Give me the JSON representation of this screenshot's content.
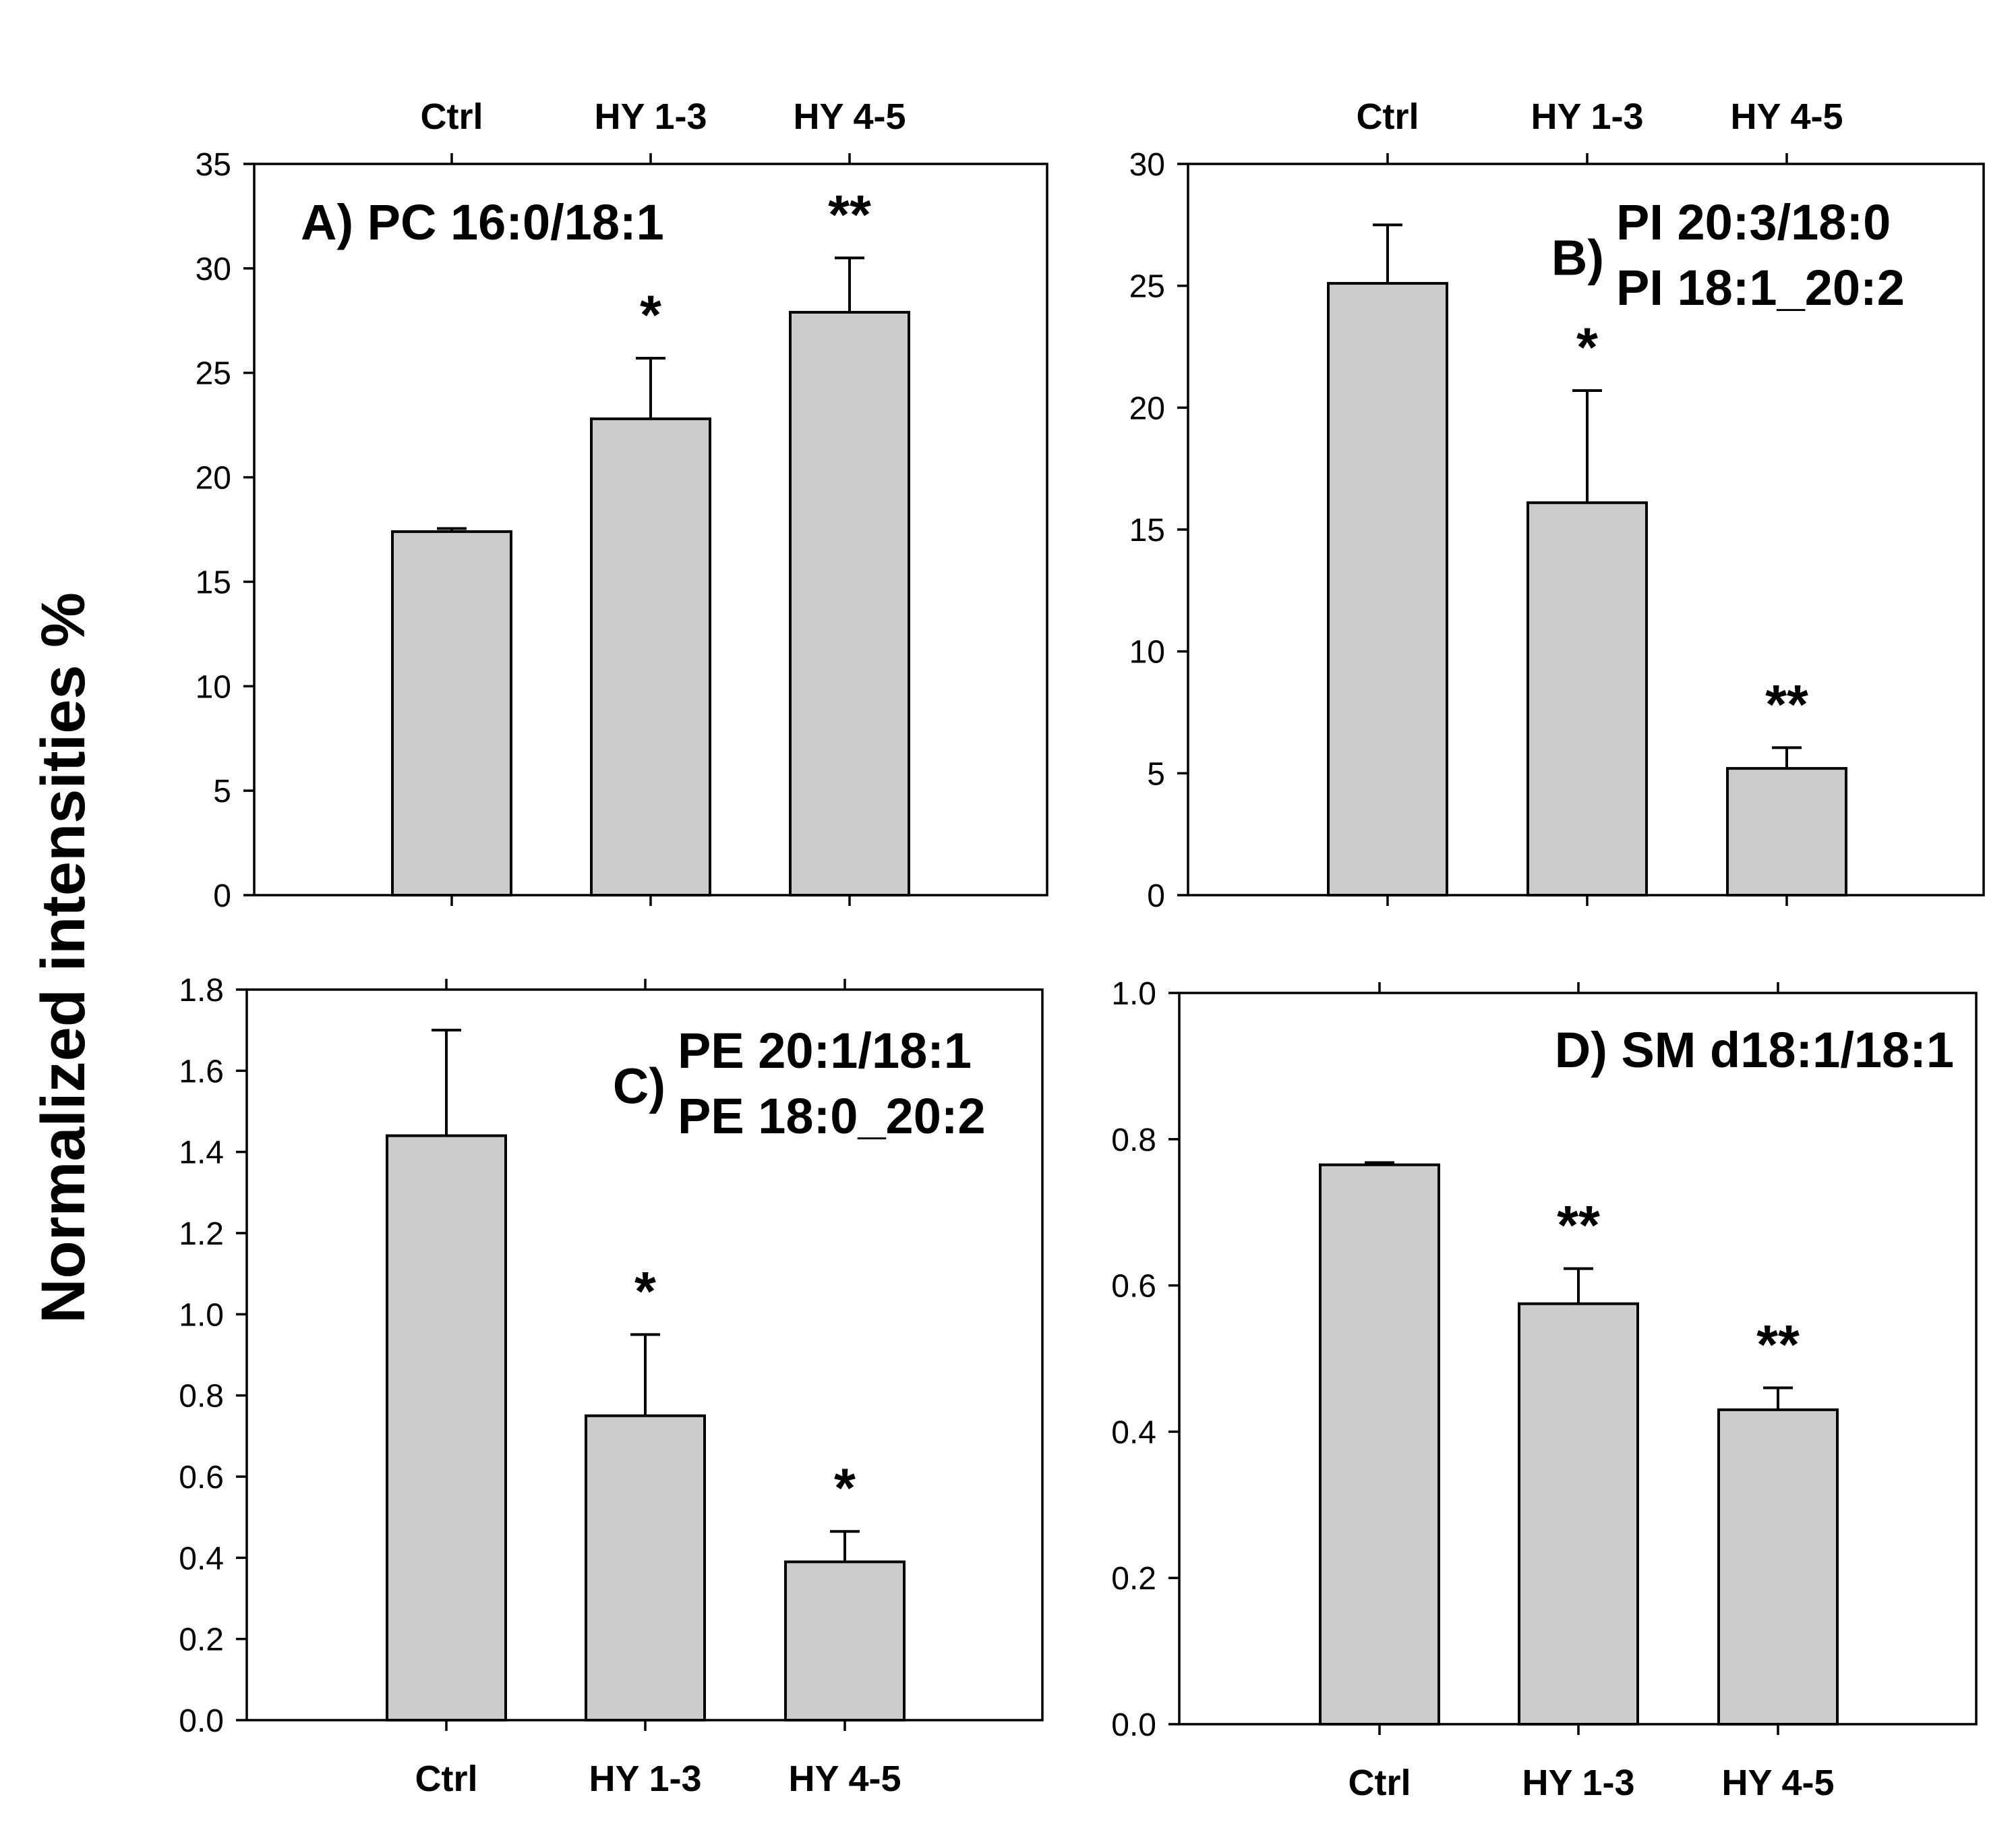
{
  "figure": {
    "ylabel": "Normalized intensities %",
    "bar_color": "#cccccc"
  },
  "chart_data": [
    {
      "id": "A",
      "type": "bar",
      "label_parts": [
        "A)",
        "PC 16:0/18:1"
      ],
      "categories": [
        "Ctrl",
        "HY 1-3",
        "HY 4-5"
      ],
      "values": [
        17.4,
        22.8,
        27.9
      ],
      "errors": [
        0.15,
        2.9,
        2.6
      ],
      "significance": [
        "",
        "*",
        "**"
      ],
      "ylim": [
        0,
        35
      ],
      "yticks": [
        0,
        5,
        10,
        15,
        20,
        25,
        30,
        35
      ],
      "ytick_labels": [
        "0",
        "5",
        "10",
        "15",
        "20",
        "25",
        "30",
        "35"
      ],
      "category_axis": "top"
    },
    {
      "id": "B",
      "type": "bar",
      "label_parts": [
        "B)",
        "PI 20:3/18:0",
        "PI 18:1_20:2"
      ],
      "categories": [
        "Ctrl",
        "HY 1-3",
        "HY 4-5"
      ],
      "values": [
        25.1,
        16.1,
        5.2
      ],
      "errors": [
        2.4,
        4.6,
        0.85
      ],
      "significance": [
        "",
        "*",
        "**"
      ],
      "ylim": [
        0,
        30
      ],
      "yticks": [
        0,
        5,
        10,
        15,
        20,
        25,
        30
      ],
      "ytick_labels": [
        "0",
        "5",
        "10",
        "15",
        "20",
        "25",
        "30"
      ],
      "category_axis": "top"
    },
    {
      "id": "C",
      "type": "bar",
      "label_parts": [
        "C)",
        "PE 20:1/18:1",
        "PE 18:0_20:2"
      ],
      "categories": [
        "Ctrl",
        "HY 1-3",
        "HY 4-5"
      ],
      "values": [
        1.44,
        0.75,
        0.39
      ],
      "errors": [
        0.26,
        0.2,
        0.075
      ],
      "significance": [
        "",
        "*",
        "*"
      ],
      "ylim": [
        0,
        1.8
      ],
      "yticks": [
        0,
        0.2,
        0.4,
        0.6,
        0.8,
        1.0,
        1.2,
        1.4,
        1.6,
        1.8
      ],
      "ytick_labels": [
        "0.0",
        "0.2",
        "0.4",
        "0.6",
        "0.8",
        "1.0",
        "1.2",
        "1.4",
        "1.6",
        "1.8"
      ],
      "category_axis": "bottom"
    },
    {
      "id": "D",
      "type": "bar",
      "label_parts": [
        "D)",
        "SM d18:1/18:1"
      ],
      "categories": [
        "Ctrl",
        "HY 1-3",
        "HY 4-5"
      ],
      "values": [
        0.765,
        0.575,
        0.43
      ],
      "errors": [
        0.003,
        0.048,
        0.03
      ],
      "significance": [
        "",
        "**",
        "**"
      ],
      "ylim": [
        0,
        1.0
      ],
      "yticks": [
        0,
        0.2,
        0.4,
        0.6,
        0.8,
        1.0
      ],
      "ytick_labels": [
        "0.0",
        "0.2",
        "0.4",
        "0.6",
        "0.8",
        "1.0"
      ],
      "category_axis": "bottom"
    }
  ]
}
